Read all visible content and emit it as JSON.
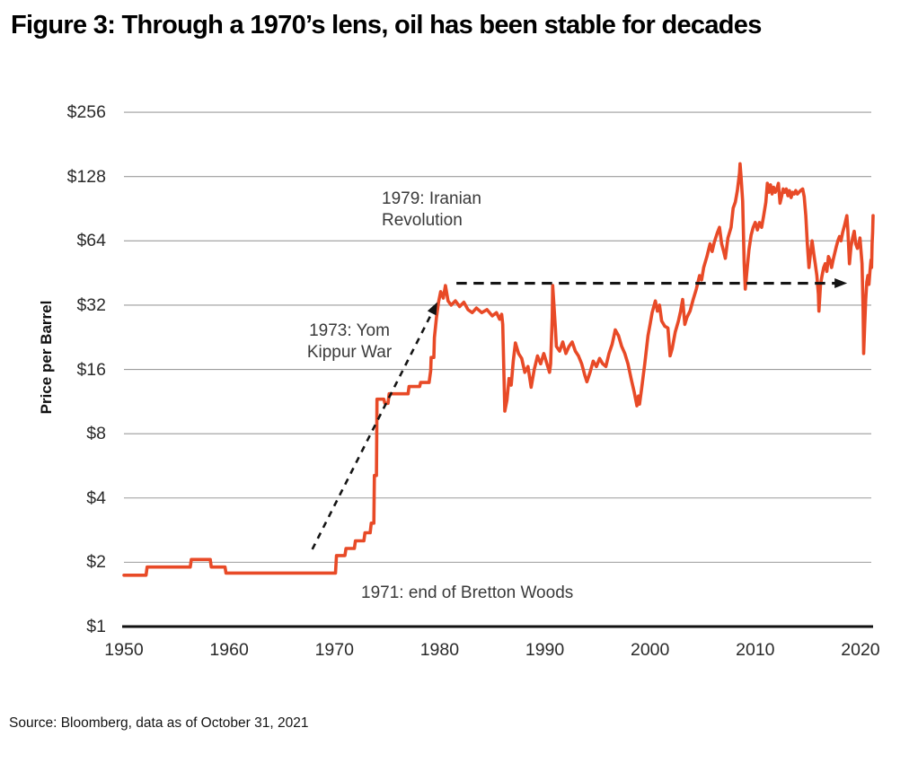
{
  "title": "Figure 3: Through a 1970’s lens, oil has been stable for decades",
  "source_note": "Source: Bloomberg, data as of October 31, 2021",
  "colors": {
    "line": "#E84A27",
    "grid": "#9C9C9C",
    "axis": "#111111",
    "arrow": "#141414",
    "text": "#2a2a2a"
  },
  "chart_data": {
    "type": "line",
    "title": "Figure 3: Through a 1970’s lens, oil has been stable for decades",
    "xlabel": "",
    "ylabel": "Price per Barrel",
    "y_scale": "log2",
    "ylim": [
      1,
      256
    ],
    "xlim": [
      1950,
      2021.2
    ],
    "grid": true,
    "legend": "none",
    "y_ticks": [
      {
        "label": "$256",
        "value": 256
      },
      {
        "label": "$128",
        "value": 128
      },
      {
        "label": "$64",
        "value": 64
      },
      {
        "label": "$32",
        "value": 32
      },
      {
        "label": "$16",
        "value": 16
      },
      {
        "label": "$8",
        "value": 8
      },
      {
        "label": "$4",
        "value": 4
      },
      {
        "label": "$2",
        "value": 2
      },
      {
        "label": "$1",
        "value": 1
      }
    ],
    "x_ticks": [
      {
        "label": "1950",
        "value": 1950
      },
      {
        "label": "1960",
        "value": 1960
      },
      {
        "label": "1970",
        "value": 1970
      },
      {
        "label": "1980",
        "value": 1980
      },
      {
        "label": "1990",
        "value": 1990
      },
      {
        "label": "2000",
        "value": 2000
      },
      {
        "label": "2010",
        "value": 2010
      },
      {
        "label": "2020",
        "value": 2020
      }
    ],
    "annotations": [
      {
        "name": "iranian-revolution",
        "lines": [
          "1979: Iranian",
          "Revolution"
        ]
      },
      {
        "name": "yom-kippur-war",
        "lines": [
          "1973: Yom",
          "Kippur War"
        ]
      },
      {
        "name": "bretton-woods",
        "lines": [
          "1971: end of Bretton Woods"
        ]
      }
    ],
    "arrows": [
      {
        "name": "seventies-runup-arrow",
        "from": [
          1967.9,
          2.3
        ],
        "to": [
          1979.75,
          32.8
        ],
        "dash": [
          7,
          6.5
        ],
        "width": 2.6
      },
      {
        "name": "stability-arrow",
        "from": [
          1981.6,
          40.5
        ],
        "to": [
          2018.65,
          40.5
        ],
        "dash": [
          11.5,
          7.5
        ],
        "width": 3.2
      }
    ],
    "series": [
      {
        "name": "Crude oil price (USD per barrel)",
        "color": "#E84A27",
        "points": [
          [
            1950.0,
            1.74
          ],
          [
            1952.1,
            1.74
          ],
          [
            1952.2,
            1.9
          ],
          [
            1956.3,
            1.9
          ],
          [
            1956.4,
            2.06
          ],
          [
            1958.2,
            2.06
          ],
          [
            1958.3,
            1.9
          ],
          [
            1959.6,
            1.9
          ],
          [
            1959.7,
            1.78
          ],
          [
            1970.1,
            1.78
          ],
          [
            1970.2,
            2.15
          ],
          [
            1971.0,
            2.15
          ],
          [
            1971.1,
            2.32
          ],
          [
            1971.9,
            2.32
          ],
          [
            1972.0,
            2.52
          ],
          [
            1972.8,
            2.52
          ],
          [
            1972.9,
            2.75
          ],
          [
            1973.4,
            2.75
          ],
          [
            1973.5,
            3.05
          ],
          [
            1973.75,
            3.05
          ],
          [
            1973.8,
            5.1
          ],
          [
            1974.0,
            5.1
          ],
          [
            1974.05,
            11.6
          ],
          [
            1974.7,
            11.6
          ],
          [
            1974.8,
            11.1
          ],
          [
            1975.1,
            11.1
          ],
          [
            1975.2,
            12.3
          ],
          [
            1977.0,
            12.3
          ],
          [
            1977.1,
            13.3
          ],
          [
            1978.1,
            13.3
          ],
          [
            1978.2,
            13.9
          ],
          [
            1979.0,
            13.9
          ],
          [
            1979.15,
            15.8
          ],
          [
            1979.2,
            18.2
          ],
          [
            1979.45,
            18.2
          ],
          [
            1979.5,
            22.5
          ],
          [
            1979.7,
            28
          ],
          [
            1979.9,
            33
          ],
          [
            1980.1,
            37
          ],
          [
            1980.35,
            34.5
          ],
          [
            1980.55,
            39.5
          ],
          [
            1980.8,
            33.5
          ],
          [
            1981.1,
            32
          ],
          [
            1981.5,
            33.5
          ],
          [
            1981.9,
            31.5
          ],
          [
            1982.3,
            33
          ],
          [
            1982.7,
            30.5
          ],
          [
            1983.1,
            29.5
          ],
          [
            1983.5,
            31
          ],
          [
            1984.0,
            29.5
          ],
          [
            1984.5,
            30.5
          ],
          [
            1985.0,
            28.5
          ],
          [
            1985.4,
            29.5
          ],
          [
            1985.7,
            27.5
          ],
          [
            1985.9,
            29
          ],
          [
            1986.0,
            26
          ],
          [
            1986.2,
            10.2
          ],
          [
            1986.4,
            11.5
          ],
          [
            1986.6,
            14.5
          ],
          [
            1986.8,
            13.5
          ],
          [
            1987.0,
            17.5
          ],
          [
            1987.2,
            21.3
          ],
          [
            1987.5,
            19
          ],
          [
            1987.8,
            18
          ],
          [
            1988.1,
            15.5
          ],
          [
            1988.4,
            16.5
          ],
          [
            1988.7,
            13.2
          ],
          [
            1989.0,
            16
          ],
          [
            1989.3,
            18.5
          ],
          [
            1989.6,
            17
          ],
          [
            1989.9,
            19
          ],
          [
            1990.2,
            17
          ],
          [
            1990.45,
            15.5
          ],
          [
            1990.55,
            17
          ],
          [
            1990.7,
            28
          ],
          [
            1990.75,
            39.5
          ],
          [
            1990.85,
            33
          ],
          [
            1991.0,
            25
          ],
          [
            1991.1,
            20.5
          ],
          [
            1991.4,
            19.5
          ],
          [
            1991.7,
            21.5
          ],
          [
            1992.0,
            19
          ],
          [
            1992.3,
            20.5
          ],
          [
            1992.6,
            21.5
          ],
          [
            1992.9,
            19.5
          ],
          [
            1993.2,
            18.5
          ],
          [
            1993.5,
            17
          ],
          [
            1993.8,
            15
          ],
          [
            1994.0,
            14
          ],
          [
            1994.3,
            15.5
          ],
          [
            1994.6,
            17.5
          ],
          [
            1994.9,
            16.5
          ],
          [
            1995.2,
            18
          ],
          [
            1995.5,
            17
          ],
          [
            1995.8,
            16.5
          ],
          [
            1996.1,
            19
          ],
          [
            1996.4,
            21
          ],
          [
            1996.7,
            24.5
          ],
          [
            1997.0,
            23
          ],
          [
            1997.3,
            20.5
          ],
          [
            1997.6,
            19
          ],
          [
            1997.9,
            17
          ],
          [
            1998.2,
            14.5
          ],
          [
            1998.5,
            12.5
          ],
          [
            1998.75,
            10.8
          ],
          [
            1998.9,
            12
          ],
          [
            1999.0,
            11
          ],
          [
            1999.2,
            13
          ],
          [
            1999.5,
            17
          ],
          [
            1999.8,
            23
          ],
          [
            2000.0,
            26
          ],
          [
            2000.2,
            29.5
          ],
          [
            2000.5,
            33.5
          ],
          [
            2000.7,
            30
          ],
          [
            2000.9,
            32
          ],
          [
            2001.1,
            27
          ],
          [
            2001.4,
            25.5
          ],
          [
            2001.7,
            25
          ],
          [
            2001.9,
            18.5
          ],
          [
            2002.1,
            20
          ],
          [
            2002.4,
            24
          ],
          [
            2002.7,
            27
          ],
          [
            2002.9,
            30
          ],
          [
            2003.1,
            34
          ],
          [
            2003.3,
            26
          ],
          [
            2003.5,
            28
          ],
          [
            2003.8,
            30
          ],
          [
            2004.1,
            34
          ],
          [
            2004.4,
            38
          ],
          [
            2004.7,
            44
          ],
          [
            2004.9,
            42
          ],
          [
            2005.1,
            48
          ],
          [
            2005.4,
            54
          ],
          [
            2005.7,
            62
          ],
          [
            2005.9,
            57
          ],
          [
            2006.1,
            63
          ],
          [
            2006.4,
            70
          ],
          [
            2006.6,
            74
          ],
          [
            2006.8,
            62
          ],
          [
            2007.0,
            57
          ],
          [
            2007.15,
            53
          ],
          [
            2007.4,
            66
          ],
          [
            2007.7,
            74
          ],
          [
            2007.9,
            91
          ],
          [
            2008.1,
            97
          ],
          [
            2008.3,
            110
          ],
          [
            2008.5,
            133
          ],
          [
            2008.55,
            147
          ],
          [
            2008.65,
            128
          ],
          [
            2008.8,
            98
          ],
          [
            2008.95,
            50
          ],
          [
            2009.05,
            38
          ],
          [
            2009.2,
            46
          ],
          [
            2009.4,
            58
          ],
          [
            2009.6,
            68
          ],
          [
            2009.8,
            74
          ],
          [
            2010.0,
            78
          ],
          [
            2010.2,
            72
          ],
          [
            2010.4,
            78
          ],
          [
            2010.6,
            74
          ],
          [
            2010.8,
            84
          ],
          [
            2011.0,
            97
          ],
          [
            2011.15,
            119
          ],
          [
            2011.3,
            108
          ],
          [
            2011.45,
            117
          ],
          [
            2011.6,
            106
          ],
          [
            2011.75,
            114
          ],
          [
            2011.9,
            108
          ],
          [
            2012.05,
            112
          ],
          [
            2012.2,
            119
          ],
          [
            2012.35,
            96
          ],
          [
            2012.5,
            103
          ],
          [
            2012.65,
            112
          ],
          [
            2012.8,
            108
          ],
          [
            2012.95,
            112
          ],
          [
            2013.1,
            104
          ],
          [
            2013.25,
            110
          ],
          [
            2013.4,
            102
          ],
          [
            2013.55,
            108
          ],
          [
            2013.7,
            106
          ],
          [
            2013.85,
            110
          ],
          [
            2014.0,
            106
          ],
          [
            2014.15,
            108
          ],
          [
            2014.3,
            110
          ],
          [
            2014.5,
            112
          ],
          [
            2014.65,
            103
          ],
          [
            2014.8,
            84
          ],
          [
            2014.95,
            62
          ],
          [
            2015.1,
            48
          ],
          [
            2015.25,
            56
          ],
          [
            2015.4,
            64
          ],
          [
            2015.55,
            56
          ],
          [
            2015.7,
            50
          ],
          [
            2015.85,
            44
          ],
          [
            2016.0,
            36
          ],
          [
            2016.05,
            30
          ],
          [
            2016.2,
            40
          ],
          [
            2016.35,
            44
          ],
          [
            2016.5,
            48
          ],
          [
            2016.65,
            50
          ],
          [
            2016.8,
            46
          ],
          [
            2016.95,
            54
          ],
          [
            2017.1,
            52
          ],
          [
            2017.25,
            48
          ],
          [
            2017.4,
            52
          ],
          [
            2017.55,
            56
          ],
          [
            2017.7,
            60
          ],
          [
            2017.85,
            64
          ],
          [
            2018.0,
            67
          ],
          [
            2018.15,
            64
          ],
          [
            2018.3,
            70
          ],
          [
            2018.5,
            76
          ],
          [
            2018.7,
            84
          ],
          [
            2018.8,
            72
          ],
          [
            2018.95,
            50
          ],
          [
            2019.1,
            60
          ],
          [
            2019.25,
            66
          ],
          [
            2019.4,
            71
          ],
          [
            2019.55,
            62
          ],
          [
            2019.7,
            59
          ],
          [
            2019.85,
            62
          ],
          [
            2019.95,
            66
          ],
          [
            2020.05,
            57
          ],
          [
            2020.15,
            50
          ],
          [
            2020.25,
            30
          ],
          [
            2020.3,
            19
          ],
          [
            2020.4,
            26
          ],
          [
            2020.5,
            34
          ],
          [
            2020.6,
            41
          ],
          [
            2020.7,
            44
          ],
          [
            2020.8,
            40
          ],
          [
            2020.9,
            46
          ],
          [
            2021.0,
            52
          ],
          [
            2021.05,
            48
          ],
          [
            2021.1,
            62
          ],
          [
            2021.15,
            70
          ],
          [
            2021.2,
            84
          ]
        ]
      }
    ]
  }
}
